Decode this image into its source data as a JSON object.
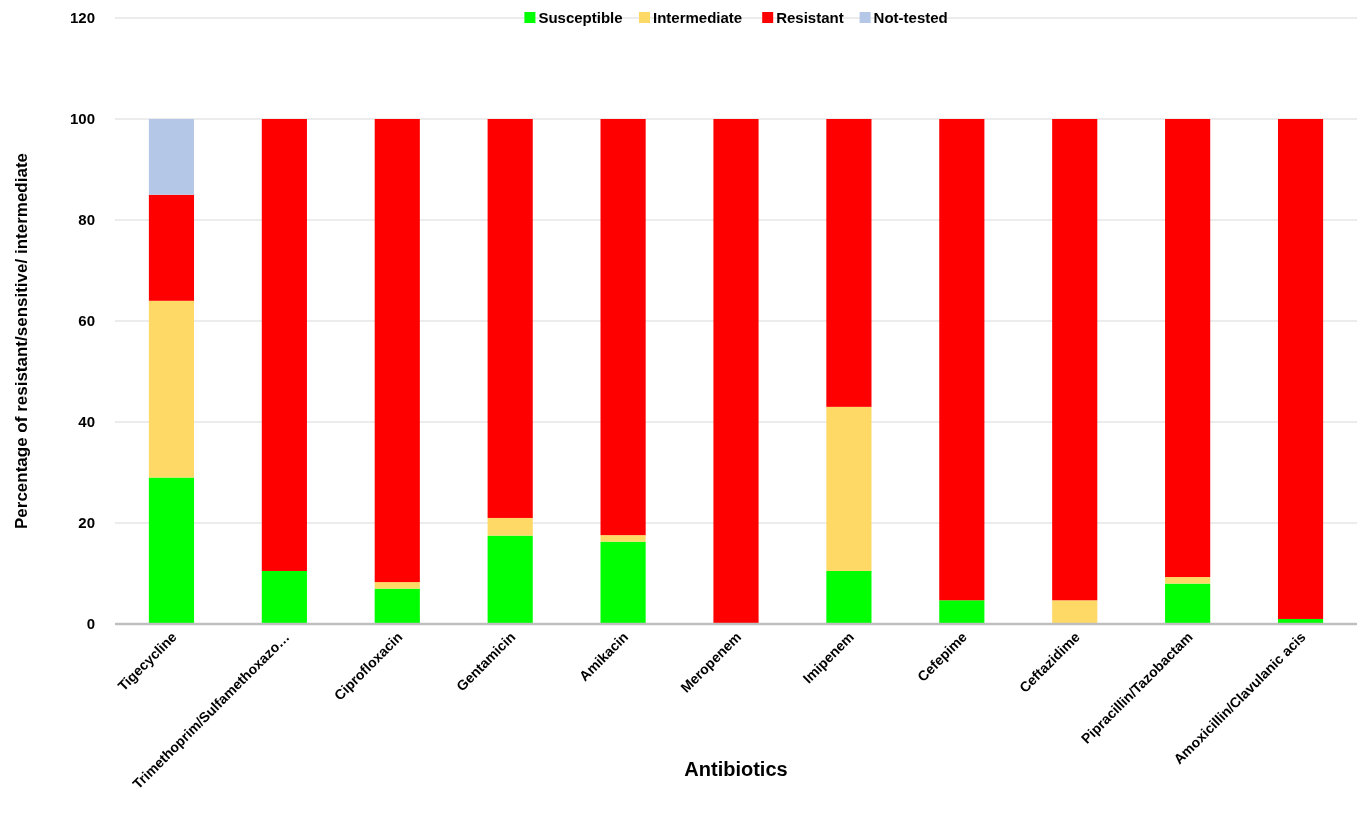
{
  "chart_data": {
    "type": "bar",
    "stacked": true,
    "xlabel": "Antibiotics",
    "ylabel": "Percentage  of resistant/sensitive/ intermediate",
    "categories": [
      "Tigecycline",
      "Trimethoprim/Sulfamethoxazo…",
      "Ciprofloxacin",
      "Gentamicin",
      "Amikacin",
      "Meropenem",
      "Imipenem",
      "Cefepime",
      "Ceftazidime",
      "Pipracillin/Tazobactam",
      "Amoxicillin/Clavulanic acis"
    ],
    "series": [
      {
        "name": "Susceptible",
        "color": "#00ff00",
        "values": [
          29,
          10.5,
          7,
          17.5,
          16.3,
          0,
          10.5,
          4.7,
          0,
          8,
          1
        ]
      },
      {
        "name": "Intermediate",
        "color": "#ffd966",
        "values": [
          35,
          0,
          1.3,
          3.5,
          1.3,
          0,
          32.5,
          0,
          4.7,
          1.3,
          0
        ]
      },
      {
        "name": "Resistant",
        "color": "#ff0000",
        "values": [
          21,
          89.5,
          91.7,
          79,
          82.4,
          100,
          57,
          95.3,
          95.3,
          90.7,
          99
        ]
      },
      {
        "name": "Not-tested",
        "color": "#b4c7e7",
        "values": [
          15,
          0,
          0,
          0,
          0,
          0,
          0,
          0,
          0,
          0,
          0
        ]
      }
    ],
    "ylim": [
      0,
      120
    ],
    "yticks": [
      0,
      20,
      40,
      60,
      80,
      100,
      120
    ],
    "grid": "y",
    "legend": "top"
  }
}
